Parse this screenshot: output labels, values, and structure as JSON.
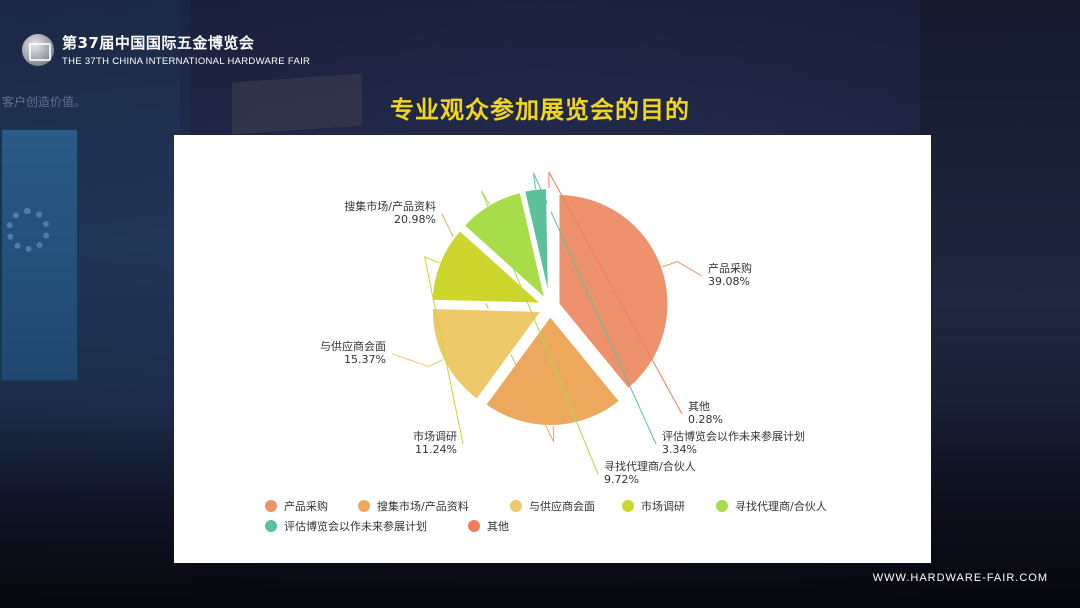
{
  "header": {
    "logo_cn": "第37届中国国际五金博览会",
    "logo_en": "THE 37TH CHINA INTERNATIONAL HARDWARE FAIR"
  },
  "background": {
    "slogan": "客户创造价值。"
  },
  "footer": {
    "url": "WWW.HARDWARE-FAIR.COM"
  },
  "colors": {
    "title": "#f2d51d",
    "slices": [
      "#ee926d",
      "#eca85c",
      "#edc96a",
      "#cdd62c",
      "#a8dd4a",
      "#5cc09a",
      "#ef7d5a"
    ]
  },
  "chart_data": {
    "type": "pie",
    "title": "专业观众参加展览会的目的",
    "unit": "%",
    "legend_position": "bottom",
    "slices": [
      {
        "label": "产品采购",
        "value": 39.08,
        "display": "39.08%"
      },
      {
        "label": "搜集市场/产品资料",
        "value": 20.98,
        "display": "20.98%"
      },
      {
        "label": "与供应商会面",
        "value": 15.37,
        "display": "15.37%"
      },
      {
        "label": "市场调研",
        "value": 11.24,
        "display": "11.24%"
      },
      {
        "label": "寻找代理商/合伙人",
        "value": 9.72,
        "display": "9.72%"
      },
      {
        "label": "评估博览会以作未来参展计划",
        "value": 3.34,
        "display": "3.34%"
      },
      {
        "label": "其他",
        "value": 0.28,
        "display": "0.28%"
      }
    ]
  }
}
